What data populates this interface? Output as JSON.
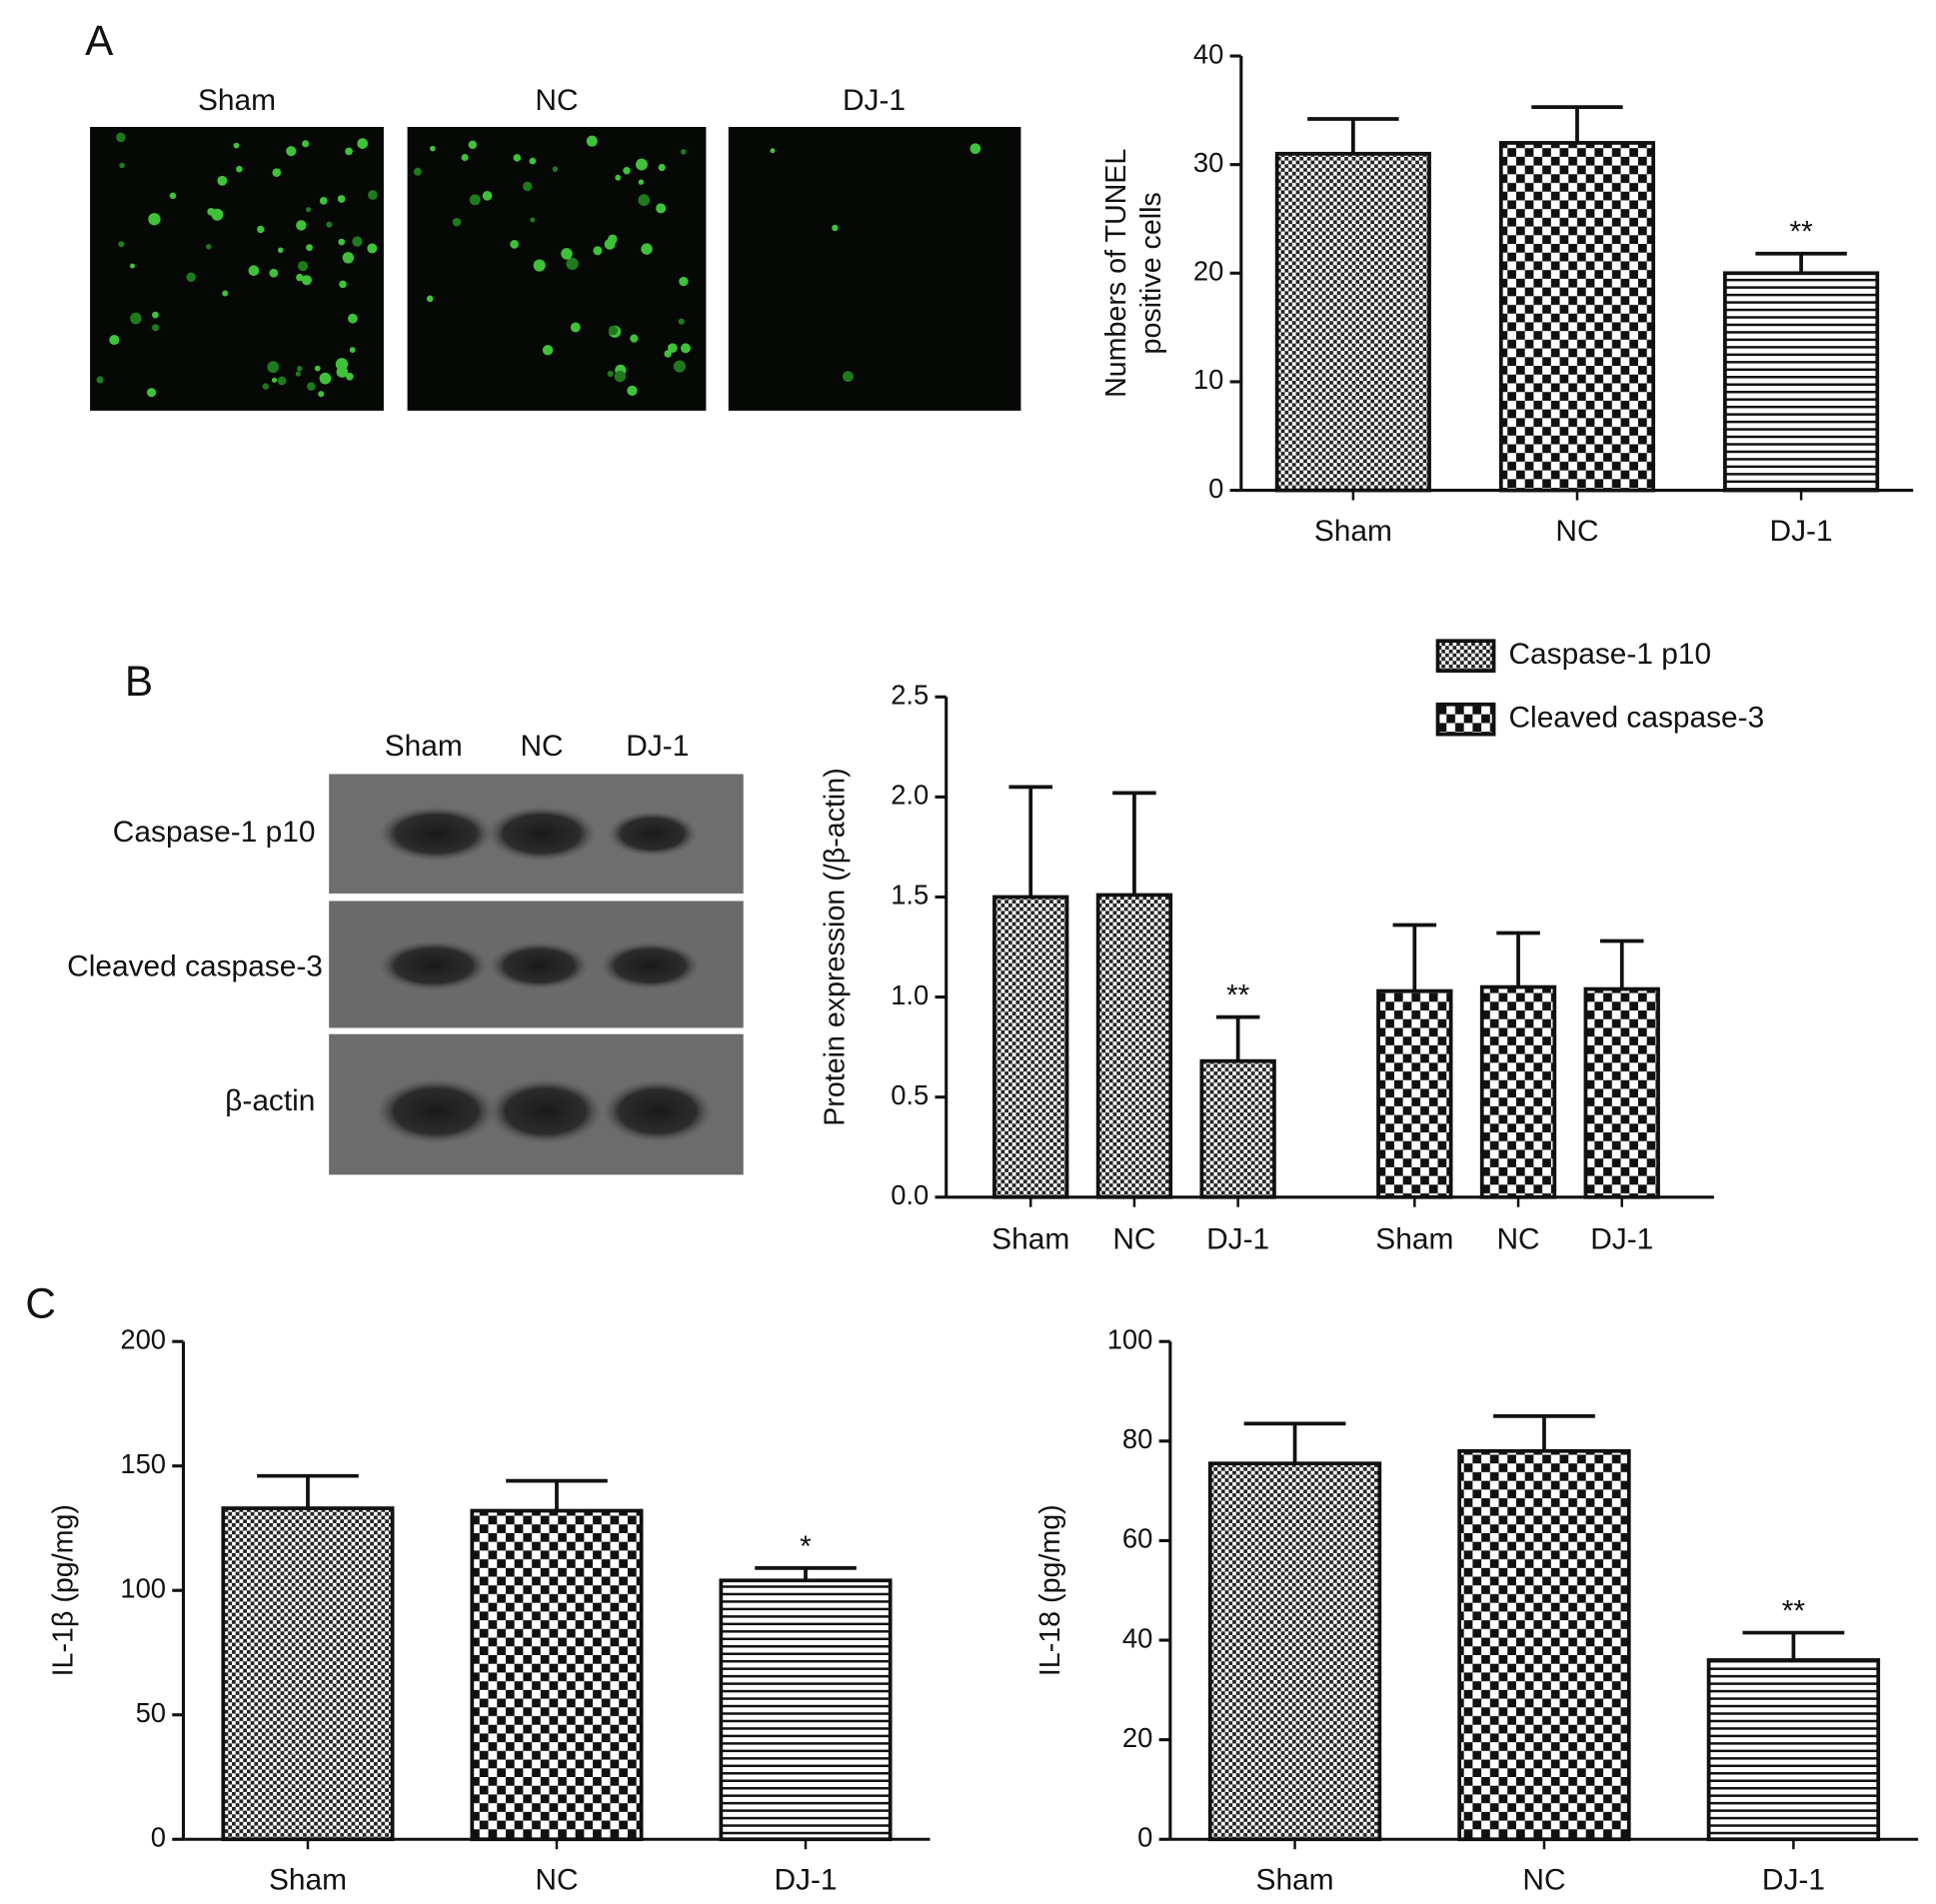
{
  "panel_labels": [
    "A",
    "B",
    "C"
  ],
  "micrographs": {
    "labels": [
      "Sham",
      "NC",
      "DJ-1"
    ]
  },
  "western_blot": {
    "lanes": [
      "Sham",
      "NC",
      "DJ-1"
    ],
    "bands": [
      "Caspase-1 p10",
      "Cleaved caspase-3",
      "β-actin"
    ]
  },
  "chart_data": [
    {
      "type": "bar",
      "y_label": [
        "Numbers of TUNEL",
        "positive cells"
      ],
      "categories": [
        "Sham",
        "NC",
        "DJ-1"
      ],
      "values": [
        31,
        32,
        20
      ],
      "errors": [
        3.2,
        3.3,
        1.8
      ],
      "bar_labels": [
        null,
        null,
        "**"
      ],
      "patterns": [
        "fine-check",
        "check",
        "stripes"
      ],
      "ylim": [
        0,
        40
      ],
      "yticks": [
        0,
        10,
        20,
        30,
        40
      ]
    },
    {
      "type": "grouped-bar",
      "y_label": "Protein expression (/β-actin)",
      "categories": [
        "Sham",
        "NC",
        "DJ-1"
      ],
      "series": [
        {
          "name": "Caspase-1 p10",
          "pattern": "fine-check",
          "values": [
            1.5,
            1.51,
            0.68
          ],
          "errors": [
            0.55,
            0.51,
            0.22
          ],
          "bar_labels": [
            null,
            null,
            "**"
          ]
        },
        {
          "name": "Cleaved caspase-3",
          "pattern": "check",
          "values": [
            1.03,
            1.05,
            1.04
          ],
          "errors": [
            0.33,
            0.27,
            0.24
          ]
        }
      ],
      "legend": "top-right",
      "ylim": [
        0,
        2.5
      ],
      "yticks": [
        {
          "value": 0,
          "label": "0.0"
        },
        0.5,
        {
          "value": 1,
          "label": "1.0"
        },
        1.5,
        {
          "value": 2,
          "label": "2.0"
        },
        2.5
      ]
    },
    {
      "type": "bar",
      "y_label": "IL-1β (pg/mg)",
      "categories": [
        "Sham",
        "NC",
        "DJ-1"
      ],
      "values": [
        133,
        132,
        104
      ],
      "errors": [
        13,
        12,
        5
      ],
      "bar_labels": [
        null,
        null,
        "*"
      ],
      "patterns": [
        "fine-check",
        "check",
        "stripes"
      ],
      "ylim": [
        0,
        200
      ],
      "yticks": [
        0,
        50,
        100,
        150,
        200
      ]
    },
    {
      "type": "bar",
      "y_label": "IL-18 (pg/mg)",
      "categories": [
        "Sham",
        "NC",
        "DJ-1"
      ],
      "values": [
        75.5,
        78,
        36
      ],
      "errors": [
        8,
        7,
        5.5
      ],
      "bar_labels": [
        null,
        null,
        "**"
      ],
      "patterns": [
        "fine-check",
        "check",
        "stripes"
      ],
      "ylim": [
        0,
        100
      ],
      "yticks": [
        0,
        20,
        40,
        60,
        80,
        100
      ]
    }
  ]
}
